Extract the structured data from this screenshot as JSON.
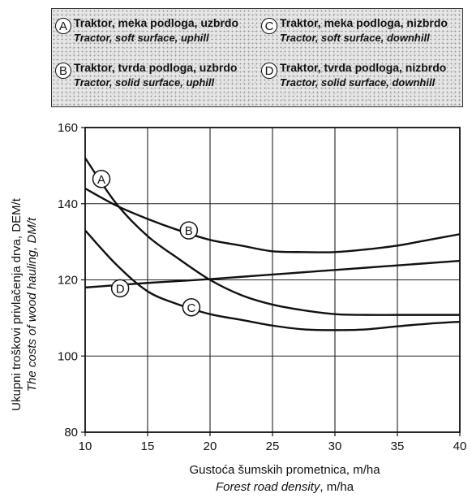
{
  "legend": {
    "items": [
      {
        "letter": "A",
        "hr": "Traktor, meka podloga, uzbrdo",
        "en": "Tractor, soft surface, uphill"
      },
      {
        "letter": "B",
        "hr": "Traktor, tvrda podloga, uzbrdo",
        "en": "Tractor, solid surface, uphill"
      },
      {
        "letter": "C",
        "hr": "Traktor, meka podloga, nizbrdo",
        "en": "Tractor, soft surface, downhill"
      },
      {
        "letter": "D",
        "hr": "Traktor, tvrda podloga, nizbrdo",
        "en": "Tractor, solid surface, downhill"
      }
    ]
  },
  "chart_data": {
    "type": "line",
    "title": "",
    "xlabel": "Gustoća šumskih prometnica, m/ha",
    "xlabel_en": "Forest road density",
    "xlabel_en_unit": ", m/ha",
    "ylabel": "Ukupni troškovi privlačenja drva, DEM/t",
    "ylabel_en": "The costs of wood hauling, DM/t",
    "xlim": [
      10,
      40
    ],
    "ylim": [
      80,
      160
    ],
    "xticks": [
      10,
      15,
      20,
      25,
      30,
      35,
      40
    ],
    "yticks": [
      80,
      100,
      120,
      140,
      160
    ],
    "grid": true,
    "series": [
      {
        "name": "A",
        "x": [
          10,
          12.5,
          15,
          17.5,
          20,
          22.5,
          25,
          27.5,
          30,
          32.5,
          35,
          37.5,
          40
        ],
        "y": [
          152,
          140,
          131.5,
          125.5,
          120,
          116,
          113.5,
          112,
          111,
          110.8,
          110.8,
          110.8,
          110.8
        ],
        "label_at": [
          11.3,
          146.5
        ]
      },
      {
        "name": "B",
        "x": [
          10,
          12.5,
          15,
          17.5,
          20,
          22.5,
          25,
          27.5,
          30,
          32.5,
          35,
          37.5,
          40
        ],
        "y": [
          144,
          139.5,
          136,
          133,
          130.5,
          129,
          127.5,
          127.3,
          127.3,
          128,
          129,
          130.5,
          132
        ],
        "label_at": [
          18.3,
          133
        ]
      },
      {
        "name": "C",
        "x": [
          10,
          12.5,
          15,
          17.5,
          20,
          22.5,
          25,
          27.5,
          30,
          32.5,
          35,
          37.5,
          40
        ],
        "y": [
          133,
          124,
          117,
          113.5,
          111,
          109.5,
          108,
          107,
          106.8,
          107,
          107.8,
          108.5,
          109
        ],
        "label_at": [
          18.5,
          112.8
        ]
      },
      {
        "name": "D",
        "x": [
          10,
          12.5,
          15,
          17.5,
          20,
          22.5,
          25,
          27.5,
          30,
          32.5,
          35,
          37.5,
          40
        ],
        "y": [
          118,
          118.6,
          119.2,
          119.7,
          120.2,
          120.8,
          121.4,
          122,
          122.6,
          123.2,
          123.8,
          124.4,
          125
        ],
        "label_at": [
          12.8,
          117.8
        ]
      }
    ]
  }
}
